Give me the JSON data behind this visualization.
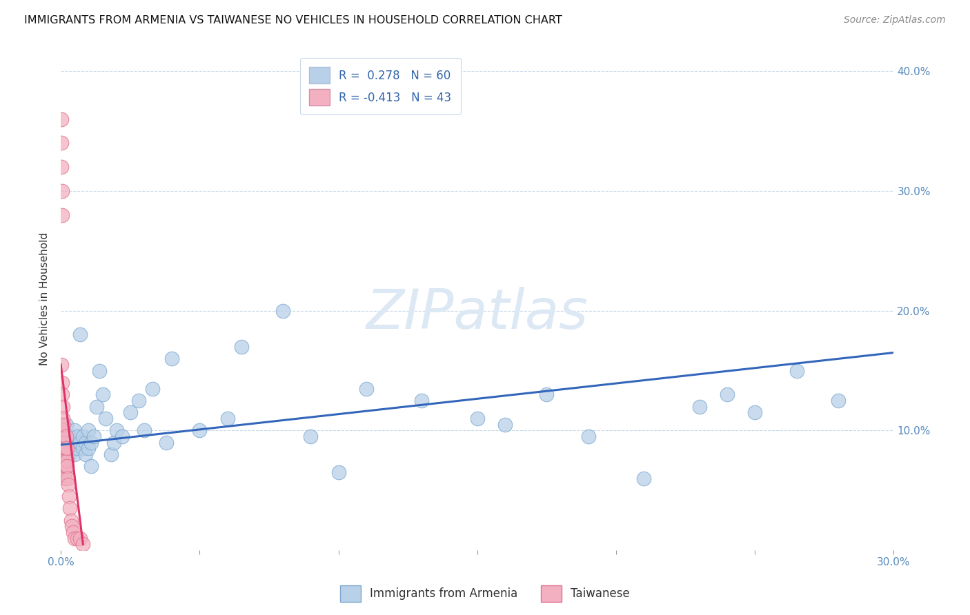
{
  "title": "IMMIGRANTS FROM ARMENIA VS TAIWANESE NO VEHICLES IN HOUSEHOLD CORRELATION CHART",
  "source": "Source: ZipAtlas.com",
  "ylabel": "No Vehicles in Household",
  "xlim": [
    0.0,
    0.3
  ],
  "ylim": [
    0.0,
    0.42
  ],
  "legend_entry1": "R =  0.278   N = 60",
  "legend_entry2": "R = -0.413   N = 43",
  "legend_color1": "#b8d0e8",
  "legend_color2": "#f2b0c0",
  "series1_color": "#b8d0e8",
  "series2_color": "#f2b0c0",
  "series1_edge_color": "#7ba7d0",
  "series2_edge_color": "#e07090",
  "trendline1_color": "#3366bb",
  "trendline2_color": "#dd3366",
  "watermark": "ZIPatlas",
  "watermark_color": "#dde8f5",
  "series1_x": [
    0.001,
    0.001,
    0.001,
    0.002,
    0.002,
    0.002,
    0.002,
    0.003,
    0.003,
    0.003,
    0.003,
    0.004,
    0.004,
    0.005,
    0.005,
    0.006,
    0.006,
    0.007,
    0.007,
    0.008,
    0.008,
    0.009,
    0.009,
    0.01,
    0.01,
    0.011,
    0.011,
    0.012,
    0.013,
    0.014,
    0.015,
    0.016,
    0.018,
    0.019,
    0.02,
    0.022,
    0.025,
    0.028,
    0.03,
    0.033,
    0.038,
    0.04,
    0.05,
    0.06,
    0.065,
    0.08,
    0.09,
    0.1,
    0.11,
    0.13,
    0.15,
    0.16,
    0.175,
    0.19,
    0.21,
    0.23,
    0.24,
    0.25,
    0.265,
    0.28
  ],
  "series1_y": [
    0.085,
    0.095,
    0.08,
    0.09,
    0.085,
    0.095,
    0.105,
    0.09,
    0.085,
    0.08,
    0.095,
    0.085,
    0.09,
    0.1,
    0.08,
    0.085,
    0.095,
    0.18,
    0.09,
    0.085,
    0.095,
    0.09,
    0.08,
    0.1,
    0.085,
    0.09,
    0.07,
    0.095,
    0.12,
    0.15,
    0.13,
    0.11,
    0.08,
    0.09,
    0.1,
    0.095,
    0.115,
    0.125,
    0.1,
    0.135,
    0.09,
    0.16,
    0.1,
    0.11,
    0.17,
    0.2,
    0.095,
    0.065,
    0.135,
    0.125,
    0.11,
    0.105,
    0.13,
    0.095,
    0.06,
    0.12,
    0.13,
    0.115,
    0.15,
    0.125
  ],
  "series2_x": [
    0.0002,
    0.0002,
    0.0002,
    0.0003,
    0.0004,
    0.0004,
    0.0005,
    0.0005,
    0.0006,
    0.0006,
    0.0007,
    0.0007,
    0.0008,
    0.0008,
    0.0009,
    0.0009,
    0.001,
    0.001,
    0.0011,
    0.0011,
    0.0012,
    0.0013,
    0.0014,
    0.0015,
    0.0016,
    0.0017,
    0.0018,
    0.0019,
    0.002,
    0.0021,
    0.0022,
    0.0023,
    0.0025,
    0.0027,
    0.003,
    0.0033,
    0.0036,
    0.004,
    0.0045,
    0.005,
    0.006,
    0.007,
    0.008
  ],
  "series2_y": [
    0.36,
    0.34,
    0.32,
    0.155,
    0.3,
    0.28,
    0.14,
    0.13,
    0.12,
    0.105,
    0.095,
    0.11,
    0.1,
    0.085,
    0.09,
    0.075,
    0.105,
    0.08,
    0.09,
    0.07,
    0.075,
    0.085,
    0.065,
    0.06,
    0.08,
    0.075,
    0.085,
    0.07,
    0.095,
    0.075,
    0.085,
    0.07,
    0.06,
    0.055,
    0.045,
    0.035,
    0.025,
    0.02,
    0.015,
    0.01,
    0.01,
    0.01,
    0.005
  ],
  "trendline1_x_start": 0.0,
  "trendline1_x_end": 0.3,
  "trendline1_y_start": 0.088,
  "trendline1_y_end": 0.165,
  "trendline2_x_start": 0.0,
  "trendline2_x_end": 0.008,
  "trendline2_y_start": 0.155,
  "trendline2_y_end": 0.005
}
